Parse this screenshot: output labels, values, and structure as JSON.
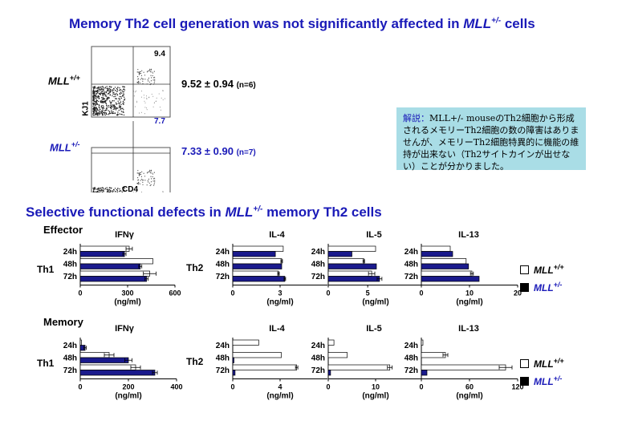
{
  "slide": {
    "title1_pre": "Memory Th2 cell generation was not significantly affected in ",
    "title1_gene": "MLL",
    "title1_sup": "+/-",
    "title1_post": " cells",
    "title2_pre": "Selective functional defects in ",
    "title2_gene": "MLL",
    "title2_sup": "+/-",
    "title2_post": " memory Th2 cells"
  },
  "flow": {
    "ylabel": "KJ1",
    "xlabel": "CD4",
    "wt_label": "MLL",
    "wt_sup": "+/+",
    "het_label": "MLL",
    "het_sup": "+/-",
    "wt_pct": "9.4",
    "het_pct": "7.7",
    "wt_stat": "9.52 ± 0.94",
    "wt_n": "(n=6)",
    "het_stat": "7.33 ± 0.90",
    "het_n": "(n=7)"
  },
  "note": {
    "head": "解説：",
    "body": "MLL+/- mouseのTh2細胞から形成されるメモリーTh2細胞の数の障害はありませんが、メモリーTh2細胞特異的に機能の維持が出来ない（Th2サイトカインが出せない）ことが分かりました。"
  },
  "legend": {
    "wt": "MLL",
    "wt_sup": "+/+",
    "het": "MLL",
    "het_sup": "+/-",
    "wt_color": "#ffffff",
    "het_color": "#000000"
  },
  "colors": {
    "bar_het": "#1a1a8c",
    "bar_wt": "#ffffff",
    "accent": "#1a1ab8"
  },
  "chart_data": [
    {
      "type": "bar",
      "orientation": "horizontal",
      "panel": "Effector",
      "group": "Th1",
      "title": "IFNγ",
      "categories": [
        "24h",
        "48h",
        "72h"
      ],
      "series": [
        {
          "name": "MLL+/+",
          "values": [
            310,
            460,
            440
          ],
          "errors": [
            20,
            0,
            40
          ]
        },
        {
          "name": "MLL+/-",
          "values": [
            280,
            380,
            420
          ],
          "errors": [
            10,
            10,
            10
          ]
        }
      ],
      "xlim": [
        0,
        600
      ],
      "ticks": [
        "0",
        "300",
        "600"
      ],
      "xlabel": "(ng/ml)"
    },
    {
      "type": "bar",
      "orientation": "horizontal",
      "panel": "Effector",
      "group": "Th2",
      "title": "IL-4",
      "categories": [
        "24h",
        "48h",
        "72h"
      ],
      "series": [
        {
          "name": "MLL+/+",
          "values": [
            3.2,
            3.1,
            2.9
          ],
          "errors": [
            0,
            0.05,
            0.05
          ]
        },
        {
          "name": "MLL+/-",
          "values": [
            2.7,
            3.1,
            3.3
          ],
          "errors": [
            0,
            0,
            0.05
          ]
        }
      ],
      "xlim": [
        0,
        6
      ],
      "ticks": [
        "0",
        "3"
      ],
      "xlabel": "(ng/ml)"
    },
    {
      "type": "bar",
      "orientation": "horizontal",
      "panel": "Effector",
      "group": "Th2",
      "title": "IL-5",
      "categories": [
        "24h",
        "48h",
        "72h"
      ],
      "series": [
        {
          "name": "MLL+/+",
          "values": [
            6,
            4.5,
            5.5
          ],
          "errors": [
            0,
            0.1,
            0.4
          ]
        },
        {
          "name": "MLL+/-",
          "values": [
            3,
            6.1,
            6.5
          ],
          "errors": [
            0,
            0,
            0.3
          ]
        }
      ],
      "xlim": [
        0,
        12
      ],
      "ticks": [
        "0",
        "5"
      ],
      "xlabel": "(ng/ml)"
    },
    {
      "type": "bar",
      "orientation": "horizontal",
      "panel": "Effector",
      "group": "Th2",
      "title": "IL-13",
      "categories": [
        "24h",
        "48h",
        "72h"
      ],
      "series": [
        {
          "name": "MLL+/+",
          "values": [
            6,
            9.3,
            10.5
          ],
          "errors": [
            0,
            0,
            0.3
          ]
        },
        {
          "name": "MLL+/-",
          "values": [
            6.5,
            9.8,
            12
          ],
          "errors": [
            0,
            0,
            0
          ]
        }
      ],
      "xlim": [
        0,
        20
      ],
      "ticks": [
        "0",
        "10",
        "20"
      ],
      "xlabel": "(ng/ml)"
    },
    {
      "type": "bar",
      "orientation": "horizontal",
      "panel": "Memory",
      "group": "Th1",
      "title": "IFNγ",
      "categories": [
        "24h",
        "48h",
        "72h"
      ],
      "series": [
        {
          "name": "MLL+/+",
          "values": [
            5,
            120,
            230
          ],
          "errors": [
            0,
            20,
            20
          ]
        },
        {
          "name": "MLL+/-",
          "values": [
            20,
            200,
            310
          ],
          "errors": [
            5,
            15,
            10
          ]
        }
      ],
      "xlim": [
        0,
        400
      ],
      "ticks": [
        "0",
        "200",
        "400"
      ],
      "xlabel": "(ng/ml)"
    },
    {
      "type": "bar",
      "orientation": "horizontal",
      "panel": "Memory",
      "group": "Th2",
      "title": "IL-4",
      "categories": [
        "24h",
        "48h",
        "72h"
      ],
      "series": [
        {
          "name": "MLL+/+",
          "values": [
            2.2,
            4.1,
            5.4
          ],
          "errors": [
            0,
            0,
            0.1
          ]
        },
        {
          "name": "MLL+/-",
          "values": [
            0,
            0.1,
            0.2
          ],
          "errors": [
            0,
            0,
            0
          ]
        }
      ],
      "xlim": [
        0,
        8
      ],
      "ticks": [
        "0",
        "4"
      ],
      "xlabel": "(ng/ml)"
    },
    {
      "type": "bar",
      "orientation": "horizontal",
      "panel": "Memory",
      "group": "Th2",
      "title": "IL-5",
      "categories": [
        "24h",
        "48h",
        "72h"
      ],
      "series": [
        {
          "name": "MLL+/+",
          "values": [
            1.2,
            4,
            13
          ],
          "errors": [
            0,
            0,
            0.5
          ]
        },
        {
          "name": "MLL+/-",
          "values": [
            0,
            0,
            0.5
          ],
          "errors": [
            0,
            0,
            0
          ]
        }
      ],
      "xlim": [
        0,
        20
      ],
      "ticks": [
        "0",
        "10"
      ],
      "xlabel": "(ng/ml)"
    },
    {
      "type": "bar",
      "orientation": "horizontal",
      "panel": "Memory",
      "group": "Th2",
      "title": "IL-13",
      "categories": [
        "24h",
        "48h",
        "72h"
      ],
      "series": [
        {
          "name": "MLL+/+",
          "values": [
            2,
            30,
            105
          ],
          "errors": [
            0,
            3,
            8
          ]
        },
        {
          "name": "MLL+/-",
          "values": [
            0,
            0,
            7
          ],
          "errors": [
            0,
            0,
            0
          ]
        }
      ],
      "xlim": [
        0,
        120
      ],
      "ticks": [
        "0",
        "60",
        "120"
      ],
      "xlabel": "(ng/ml)"
    }
  ],
  "sections": {
    "effector": "Effector",
    "memory": "Memory",
    "th1": "Th1",
    "th2": "Th2"
  }
}
